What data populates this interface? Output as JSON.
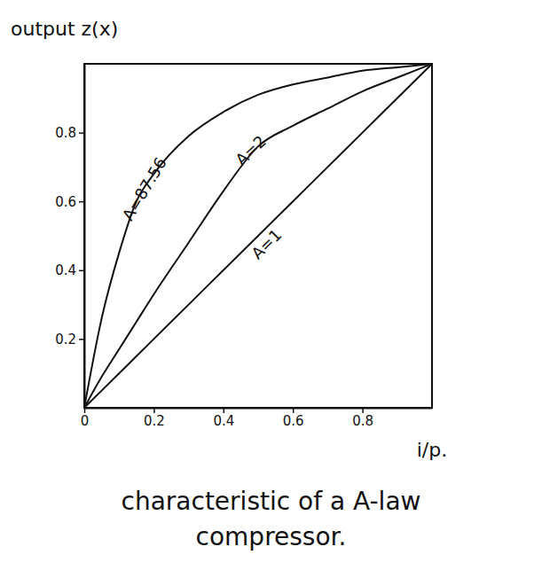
{
  "chart_data": {
    "type": "line",
    "title": "characteristic of a A-law compressor.",
    "x_label": "i/p.",
    "y_label": "output z(x)",
    "x": [
      0,
      0.05,
      0.1,
      0.15,
      0.2,
      0.3,
      0.4,
      0.5,
      0.6,
      0.7,
      0.8,
      0.9,
      1
    ],
    "series": [
      {
        "name": "A=87.56",
        "color": "#111111",
        "values": [
          0,
          0.26,
          0.45,
          0.6,
          0.68,
          0.79,
          0.86,
          0.91,
          0.94,
          0.96,
          0.98,
          0.99,
          1
        ]
      },
      {
        "name": "A=2",
        "color": "#111111",
        "values": [
          0,
          0.09,
          0.17,
          0.25,
          0.33,
          0.48,
          0.63,
          0.76,
          0.82,
          0.87,
          0.92,
          0.96,
          1
        ]
      },
      {
        "name": "A=1",
        "color": "#111111",
        "values": [
          0,
          0.05,
          0.1,
          0.15,
          0.2,
          0.3,
          0.4,
          0.5,
          0.6,
          0.7,
          0.8,
          0.9,
          1
        ]
      }
    ],
    "xlim": [
      0,
      1
    ],
    "ylim": [
      0,
      1
    ],
    "xticks": [
      0,
      0.2,
      0.4,
      0.6,
      0.8
    ],
    "yticks": [
      0.2,
      0.4,
      0.6,
      0.8
    ],
    "grid": false
  }
}
